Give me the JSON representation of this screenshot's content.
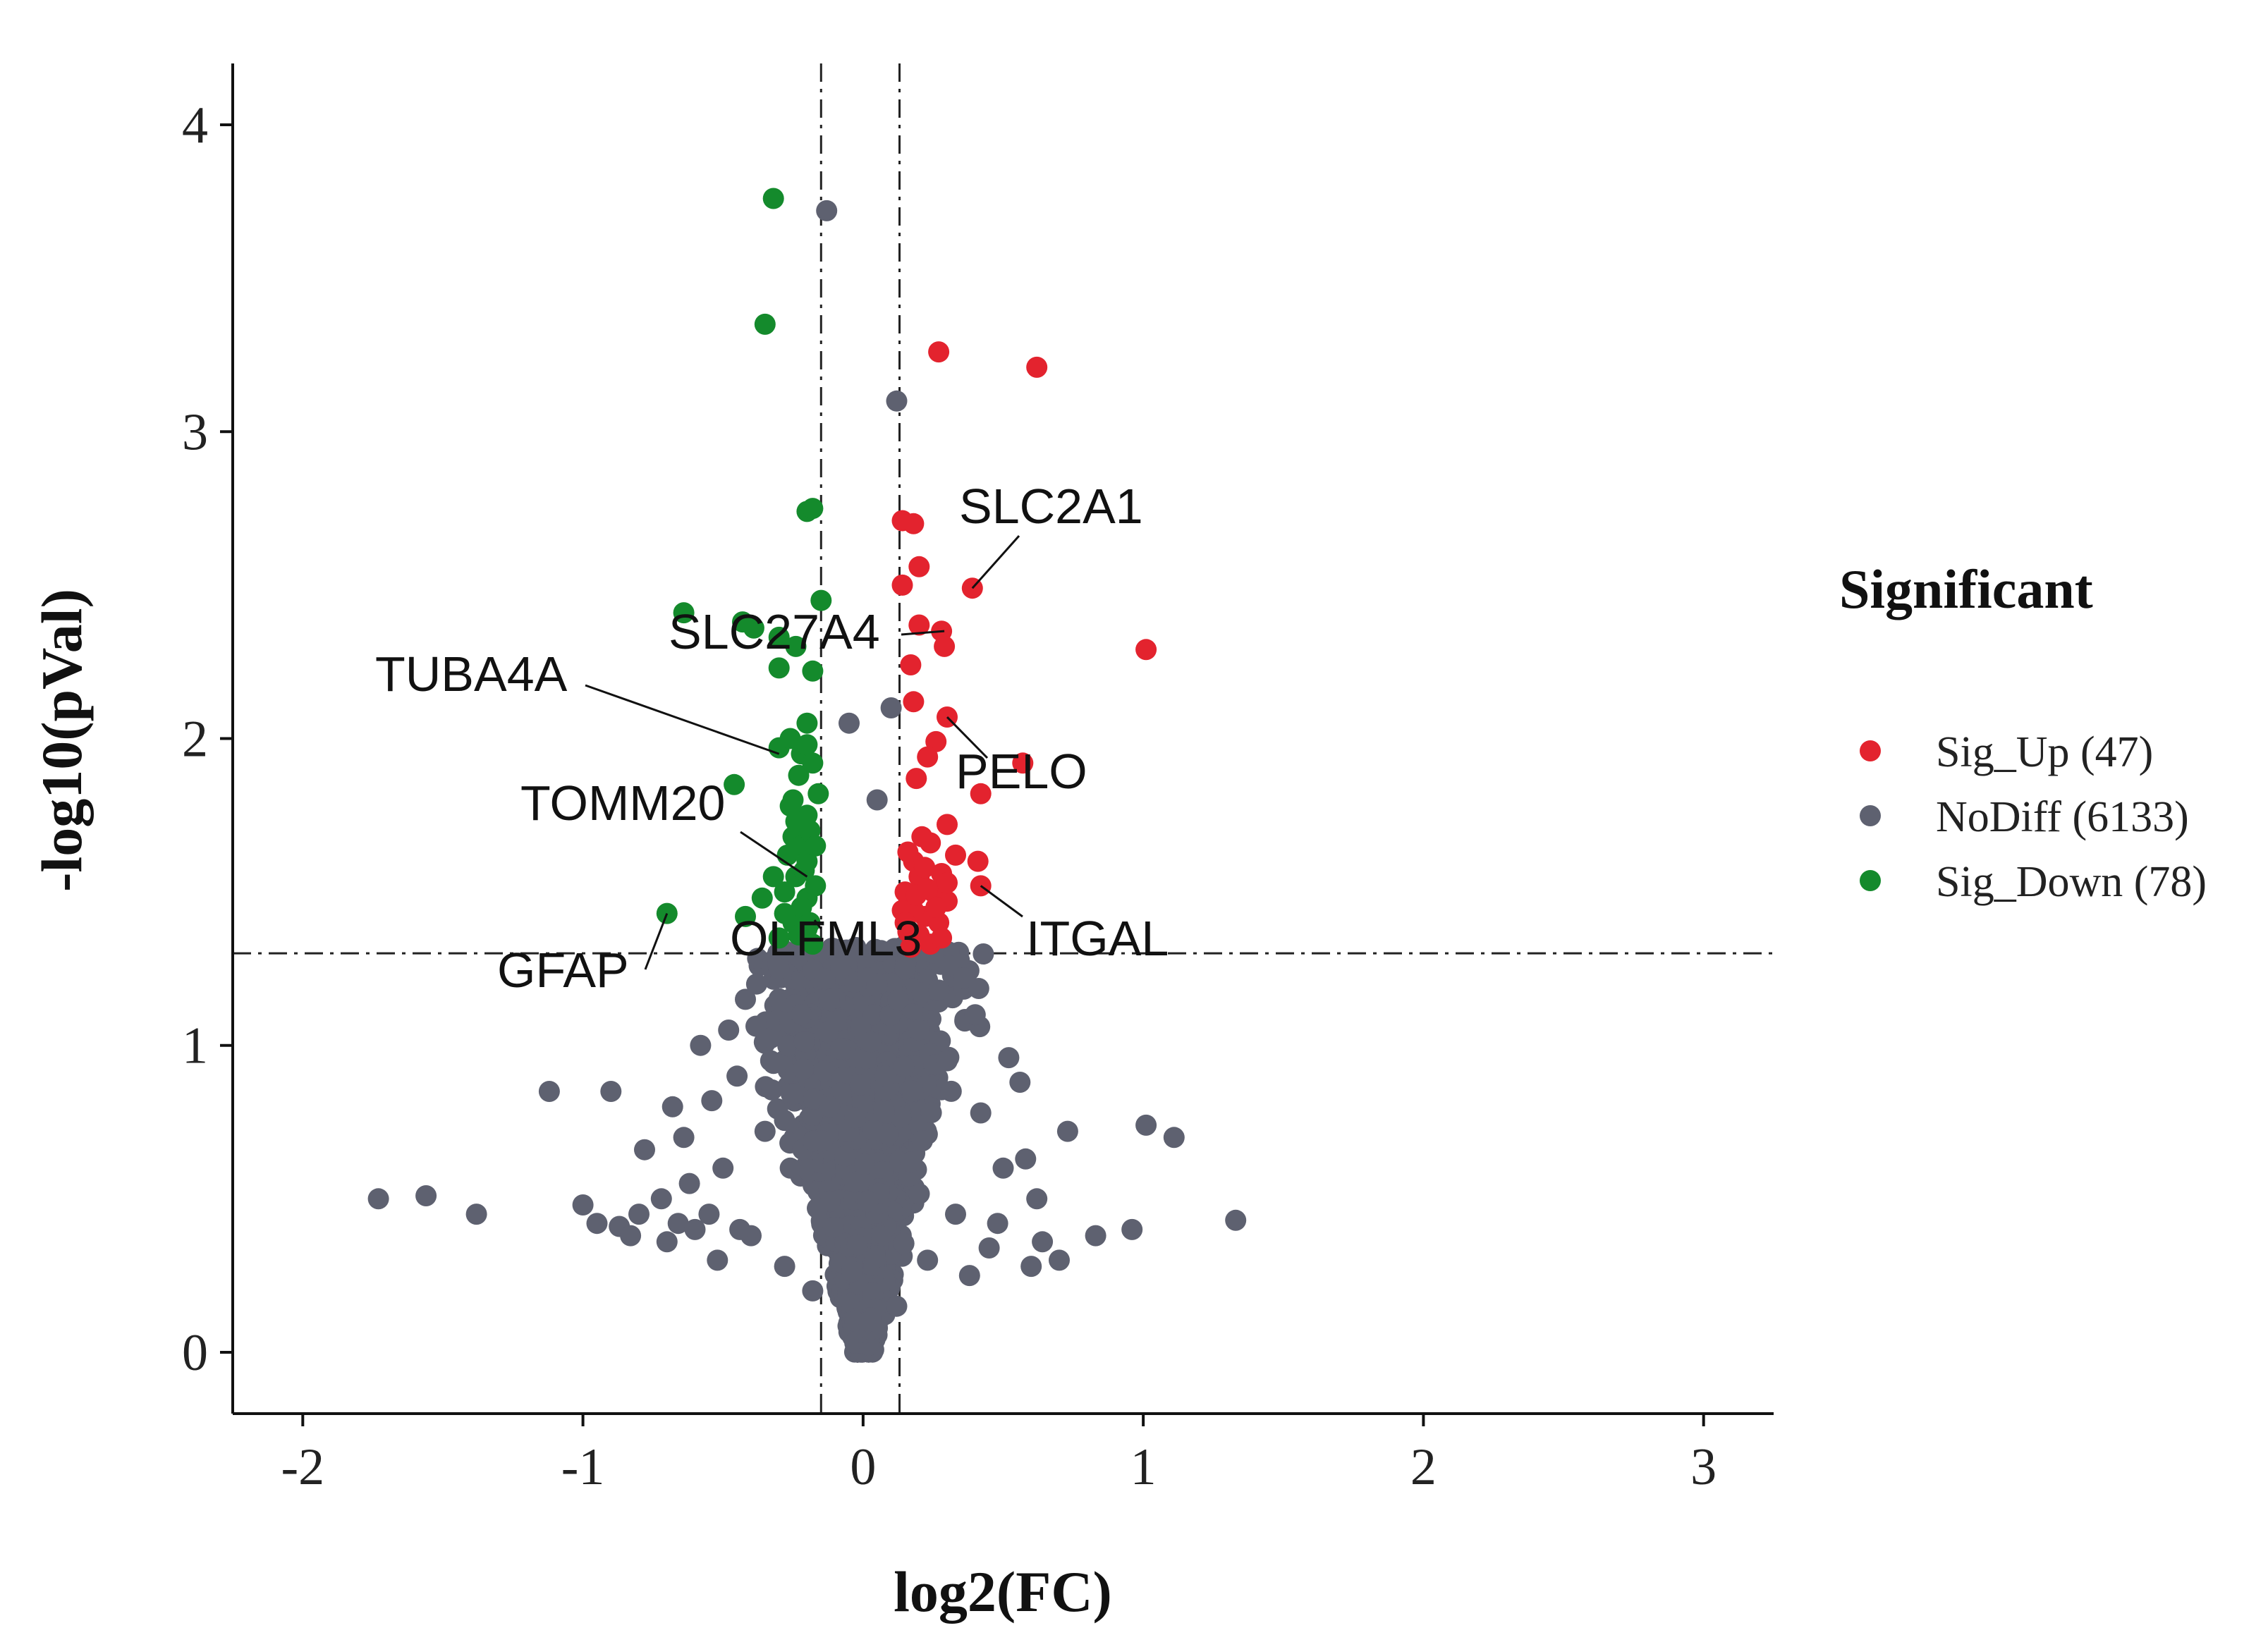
{
  "chart_data": {
    "type": "scatter",
    "subtype": "volcano",
    "xlabel": "log2(FC)",
    "ylabel": "-log10(pVal)",
    "xlim": [
      -2.25,
      3.25
    ],
    "ylim": [
      -0.2,
      4.2
    ],
    "x_ticks": [
      {
        "value": -2,
        "label": "-2"
      },
      {
        "value": -1,
        "label": "-1"
      },
      {
        "value": 0,
        "label": "0"
      },
      {
        "value": 1,
        "label": "1"
      },
      {
        "value": 2,
        "label": "2"
      },
      {
        "value": 3,
        "label": "3"
      }
    ],
    "y_ticks": [
      {
        "value": 0,
        "label": "0"
      },
      {
        "value": 1,
        "label": "1"
      },
      {
        "value": 2,
        "label": "2"
      },
      {
        "value": 3,
        "label": "3"
      },
      {
        "value": 4,
        "label": "4"
      }
    ],
    "thresholds": {
      "fc_low": -0.15,
      "fc_high": 0.13,
      "pval_line": 1.3
    },
    "legend": {
      "title": "Significant",
      "position": "right",
      "entries": [
        {
          "key": "Sig_Up",
          "label": "Sig_Up (47)",
          "color": "#e3232e"
        },
        {
          "key": "NoDiff",
          "label": "NoDiff (6133)",
          "color": "#5e6170"
        },
        {
          "key": "Sig_Down",
          "label": "Sig_Down (78)",
          "color": "#148a2c"
        }
      ]
    },
    "series": [
      {
        "name": "NoDiff",
        "color": "#5e6170",
        "points": [
          [
            -0.13,
            3.72
          ],
          [
            0.12,
            3.1
          ],
          [
            0.1,
            2.1
          ],
          [
            -0.05,
            2.05
          ],
          [
            0.05,
            1.8
          ],
          [
            -1.73,
            0.5
          ],
          [
            -1.56,
            0.51
          ],
          [
            -1.38,
            0.45
          ],
          [
            -1.12,
            0.85
          ],
          [
            -1.0,
            0.48
          ],
          [
            -0.87,
            0.41
          ],
          [
            -0.83,
            0.38
          ],
          [
            -0.72,
            0.5
          ],
          [
            -0.68,
            0.8
          ],
          [
            -0.62,
            0.55
          ],
          [
            -0.55,
            0.45
          ],
          [
            -0.5,
            0.6
          ],
          [
            -0.48,
            1.05
          ],
          [
            -0.4,
            0.38
          ],
          [
            -0.35,
            0.72
          ],
          [
            -0.9,
            0.85
          ],
          [
            -0.8,
            0.45
          ],
          [
            -0.78,
            0.66
          ],
          [
            -0.66,
            0.42
          ],
          [
            -0.6,
            0.4
          ],
          [
            -0.58,
            1.0
          ],
          [
            -0.52,
            0.3
          ],
          [
            -0.45,
            0.9
          ],
          [
            -0.42,
            1.15
          ],
          [
            -0.38,
            1.2
          ],
          [
            -0.33,
            0.95
          ],
          [
            -0.3,
            1.25
          ],
          [
            -0.26,
            0.6
          ],
          [
            -0.22,
            1.1
          ],
          [
            -0.18,
            0.2
          ],
          [
            1.01,
            0.74
          ],
          [
            1.11,
            0.7
          ],
          [
            1.33,
            0.43
          ],
          [
            0.96,
            0.4
          ],
          [
            0.83,
            0.38
          ],
          [
            0.73,
            0.72
          ],
          [
            0.7,
            0.3
          ],
          [
            0.62,
            0.5
          ],
          [
            0.58,
            0.63
          ],
          [
            0.56,
            0.88
          ],
          [
            0.52,
            0.96
          ],
          [
            0.5,
            0.6
          ],
          [
            0.45,
            0.34
          ],
          [
            0.42,
            0.78
          ],
          [
            0.4,
            1.1
          ],
          [
            0.36,
            1.22
          ],
          [
            0.33,
            0.45
          ],
          [
            0.3,
            0.95
          ],
          [
            0.27,
            1.18
          ],
          [
            0.23,
            0.3
          ],
          [
            0.2,
            1.05
          ],
          [
            0.17,
            0.62
          ],
          [
            0.15,
            1.25
          ],
          [
            0.12,
            0.15
          ],
          [
            0.08,
            0.9
          ],
          [
            0.05,
            1.2
          ],
          [
            0.02,
            0.1
          ],
          [
            -0.02,
            0.35
          ],
          [
            -0.08,
            1.25
          ],
          [
            -0.12,
            0.8
          ],
          [
            0.6,
            0.28
          ],
          [
            0.64,
            0.36
          ],
          [
            0.48,
            0.42
          ],
          [
            0.38,
            0.25
          ],
          [
            -0.28,
            0.28
          ],
          [
            -0.44,
            0.4
          ],
          [
            -0.7,
            0.36
          ],
          [
            -0.95,
            0.42
          ],
          [
            -0.64,
            0.7
          ],
          [
            -0.54,
            0.82
          ]
        ]
      },
      {
        "name": "Sig_Up",
        "color": "#e3232e",
        "points": [
          [
            0.27,
            3.26
          ],
          [
            0.62,
            3.21
          ],
          [
            0.14,
            2.71
          ],
          [
            0.18,
            2.7
          ],
          [
            0.39,
            2.49
          ],
          [
            0.2,
            2.56
          ],
          [
            0.14,
            2.5
          ],
          [
            0.2,
            2.37
          ],
          [
            0.28,
            2.35
          ],
          [
            0.29,
            2.3
          ],
          [
            0.17,
            2.24
          ],
          [
            1.01,
            2.29
          ],
          [
            0.18,
            2.12
          ],
          [
            0.3,
            2.07
          ],
          [
            0.26,
            1.99
          ],
          [
            0.23,
            1.94
          ],
          [
            0.57,
            1.92
          ],
          [
            0.19,
            1.87
          ],
          [
            0.42,
            1.82
          ],
          [
            0.3,
            1.72
          ],
          [
            0.24,
            1.66
          ],
          [
            0.41,
            1.6
          ],
          [
            0.42,
            1.52
          ],
          [
            0.18,
            1.6
          ],
          [
            0.2,
            1.55
          ],
          [
            0.15,
            1.5
          ],
          [
            0.25,
            1.5
          ],
          [
            0.3,
            1.47
          ],
          [
            0.14,
            1.44
          ],
          [
            0.22,
            1.42
          ],
          [
            0.27,
            1.4
          ],
          [
            0.16,
            1.37
          ],
          [
            0.2,
            1.36
          ],
          [
            0.24,
            1.33
          ],
          [
            0.18,
            1.44
          ],
          [
            0.28,
            1.56
          ],
          [
            0.33,
            1.62
          ],
          [
            0.22,
            1.58
          ],
          [
            0.16,
            1.63
          ],
          [
            0.3,
            1.53
          ],
          [
            0.26,
            1.45
          ],
          [
            0.19,
            1.49
          ],
          [
            0.23,
            1.51
          ],
          [
            0.15,
            1.4
          ],
          [
            0.21,
            1.68
          ],
          [
            0.28,
            1.35
          ],
          [
            0.17,
            1.32
          ]
        ]
      },
      {
        "name": "Sig_Down",
        "color": "#148a2c",
        "points": [
          [
            -0.32,
            3.76
          ],
          [
            -0.35,
            3.35
          ],
          [
            -0.2,
            2.74
          ],
          [
            -0.18,
            2.75
          ],
          [
            -0.15,
            2.45
          ],
          [
            -0.64,
            2.41
          ],
          [
            -0.43,
            2.38
          ],
          [
            -0.39,
            2.36
          ],
          [
            -0.3,
            2.33
          ],
          [
            -0.24,
            2.3
          ],
          [
            -0.3,
            2.23
          ],
          [
            -0.18,
            2.22
          ],
          [
            -0.2,
            2.05
          ],
          [
            -0.3,
            1.97
          ],
          [
            -0.22,
            1.95
          ],
          [
            -0.46,
            1.85
          ],
          [
            -0.25,
            1.8
          ],
          [
            -0.2,
            1.75
          ],
          [
            -0.25,
            1.68
          ],
          [
            -0.22,
            1.65
          ],
          [
            -0.2,
            1.6
          ],
          [
            -0.24,
            1.55
          ],
          [
            -0.28,
            1.5
          ],
          [
            -0.36,
            1.48
          ],
          [
            -0.2,
            1.48
          ],
          [
            -0.42,
            1.42
          ],
          [
            -0.7,
            1.43
          ],
          [
            -0.25,
            1.4
          ],
          [
            -0.2,
            1.38
          ],
          [
            -0.3,
            1.35
          ],
          [
            -0.18,
            1.33
          ],
          [
            -0.22,
            1.45
          ],
          [
            -0.17,
            1.52
          ],
          [
            -0.27,
            1.62
          ],
          [
            -0.19,
            1.7
          ],
          [
            -0.23,
            1.88
          ],
          [
            -0.18,
            1.92
          ],
          [
            -0.26,
            2.0
          ],
          [
            -0.16,
            1.82
          ],
          [
            -0.21,
            1.57
          ],
          [
            -0.24,
            1.73
          ],
          [
            -0.17,
            1.65
          ],
          [
            -0.28,
            1.43
          ],
          [
            -0.19,
            1.4
          ],
          [
            -0.23,
            1.36
          ],
          [
            -0.32,
            1.55
          ],
          [
            -0.26,
            1.78
          ],
          [
            -0.2,
            1.98
          ]
        ]
      }
    ],
    "annotations": [
      {
        "label": "SLC2A1",
        "point": [
          0.39,
          2.49
        ]
      },
      {
        "label": "SLC27A4",
        "point": [
          0.29,
          2.35
        ]
      },
      {
        "label": "TUBA4A",
        "point": [
          -0.3,
          1.95
        ]
      },
      {
        "label": "PELO",
        "point": [
          0.3,
          2.07
        ]
      },
      {
        "label": "TOMM20",
        "point": [
          -0.2,
          1.55
        ]
      },
      {
        "label": "OLFML3",
        "point": [
          -0.15,
          1.38
        ]
      },
      {
        "label": "ITGAL",
        "point": [
          0.42,
          1.52
        ]
      },
      {
        "label": "GFAP",
        "point": [
          -0.7,
          1.43
        ]
      }
    ]
  }
}
